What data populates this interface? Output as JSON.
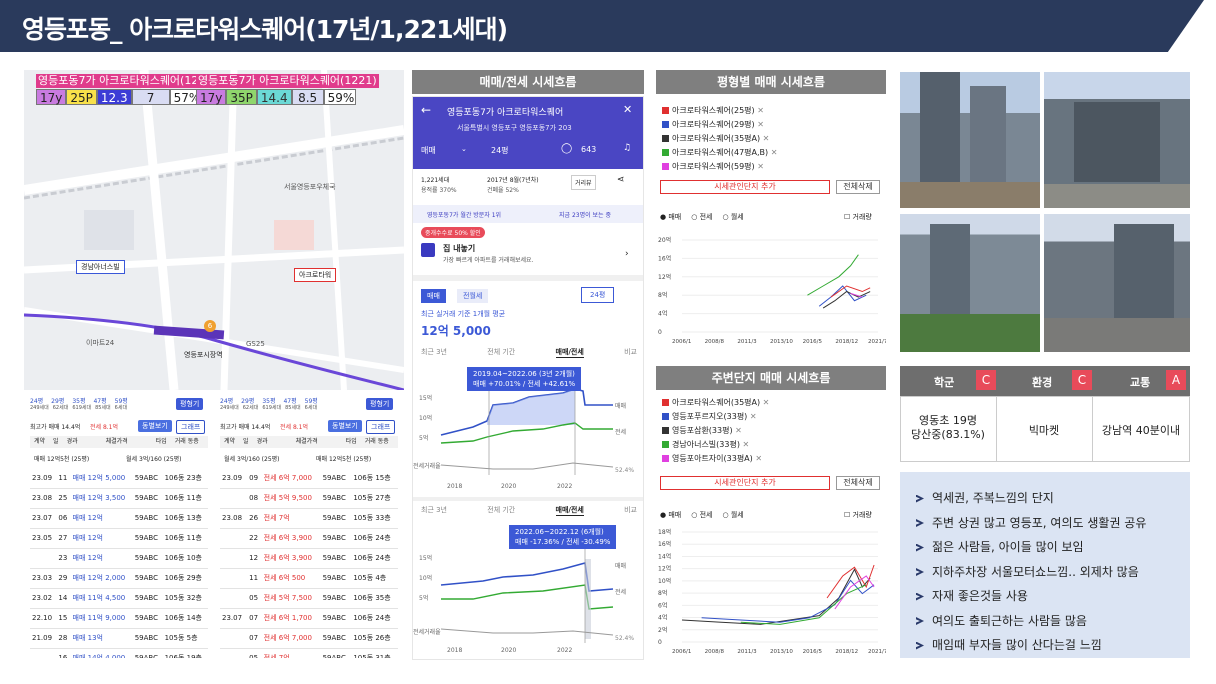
{
  "title": "영등포동_ 아크로타워스퀘어(17년/1,221세대)",
  "map": {
    "labels": [
      "영등포동7가 아크로타워스퀘어(1221)",
      "영등포동7가 아크로타워스퀘어(1221)"
    ],
    "left_cells": [
      "17y",
      "25P",
      "12.3",
      "7",
      "57%"
    ],
    "right_cells": [
      "17y",
      "35P",
      "14.4",
      "8.5",
      "59%"
    ],
    "tags": [
      "경남아너스빌",
      "아크로타워",
      "영등포시장역",
      "이마트24",
      "GS25",
      "서울영등포우체국",
      "영등포동7가"
    ]
  },
  "table_left": {
    "sizes": [
      "24평",
      "29평",
      "35평",
      "47평",
      "59평"
    ],
    "households": [
      "249세대",
      "62세대",
      "619세대",
      "85세대",
      "6세대"
    ],
    "filter_btn": "평형기",
    "max_price": "최고가 매매 14.4억",
    "jeonse_rate": "전세 8.1억",
    "chip1": "동별보기",
    "chip2": "그래프",
    "headers": [
      "계약",
      "일",
      "경과",
      "체결가격",
      "타입",
      "거래 동층"
    ],
    "summary": [
      "매매 12억5천 (25평)",
      "월세 3억/160 (25평)"
    ],
    "rows": [
      [
        "23.09",
        "11",
        "매매 12억 5,000",
        "59ABC",
        "106동 23층"
      ],
      [
        "23.08",
        "25",
        "매매 12억 3,500",
        "59ABC",
        "106동 11층"
      ],
      [
        "23.07",
        "06",
        "매매 12억",
        "59ABC",
        "106동 13층"
      ],
      [
        "23.05",
        "27",
        "매매 12억",
        "59ABC",
        "106동 11층"
      ],
      [
        "",
        "23",
        "매매 12억",
        "59ABC",
        "106동 10층"
      ],
      [
        "23.03",
        "29",
        "매매 12억 2,000",
        "59ABC",
        "106동 29층"
      ],
      [
        "23.02",
        "14",
        "매매 11억 4,500",
        "59ABC",
        "105동 32층"
      ],
      [
        "22.10",
        "15",
        "매매 11억 9,000",
        "59ABC",
        "106동 14층"
      ],
      [
        "21.09",
        "28",
        "매매 13억",
        "59ABC",
        "105동 5층"
      ],
      [
        "",
        "16",
        "매매 14억 4,000",
        "59ABC",
        "106동 19층"
      ]
    ]
  },
  "table_right": {
    "sizes": [
      "24평",
      "29평",
      "35평",
      "47평",
      "59평"
    ],
    "households": [
      "249세대",
      "62세대",
      "619세대",
      "85세대",
      "6세대"
    ],
    "filter_btn": "평형기",
    "max_price": "최고가 매매 14.4억",
    "jeonse_rate": "전세 8.1억",
    "chip1": "동별보기",
    "chip2": "그래프",
    "headers": [
      "계약",
      "일",
      "경과",
      "체결가격",
      "타입",
      "거래 동층"
    ],
    "summary": [
      "월세 3억/160 (25평)",
      "매매 12억5천 (25평)"
    ],
    "rows": [
      [
        "23.09",
        "09",
        "전세 6억 7,000",
        "59ABC",
        "106동 15층"
      ],
      [
        "",
        "08",
        "전세 5억 9,500",
        "59ABC",
        "105동 27층"
      ],
      [
        "23.08",
        "26",
        "전세 7억",
        "59ABC",
        "105동 33층"
      ],
      [
        "",
        "22",
        "전세 6억 3,900",
        "59ABC",
        "106동 24층"
      ],
      [
        "",
        "12",
        "전세 6억 3,900",
        "59ABC",
        "106동 24층"
      ],
      [
        "",
        "11",
        "전세 6억 500",
        "59ABC",
        "105동 4층"
      ],
      [
        "",
        "05",
        "전세 5억 7,500",
        "59ABC",
        "106동 35층"
      ],
      [
        "23.07",
        "07",
        "전세 6억 1,700",
        "59ABC",
        "106동 24층"
      ],
      [
        "",
        "07",
        "전세 6억 7,000",
        "59ABC",
        "105동 26층"
      ],
      [
        "",
        "05",
        "전세 7억",
        "59ABC",
        "105동 31층"
      ]
    ]
  },
  "center": {
    "header": "매매/전세 시세흐름",
    "app_title": "영등포동7가 아크로타워스퀘어",
    "address": "서울특별시 영등포구 영등포동7가 203",
    "tab_trade": "매매",
    "tab_size": "24평",
    "comment_count": "643",
    "info1": "1,221세대",
    "info2": "용적률 370%",
    "info3": "2017년 8월(7년차)",
    "info4": "건폐율 52%",
    "view_btn": "거리뷰",
    "visit_text": "영등포동7가 월간 방문자 1위",
    "visit_now": "지금 23명이 보는 중",
    "promo": "중개수수료 50% 할인",
    "sell_title": "집 내놓기",
    "sell_sub": "가장 빠르게 아파트를 거래해보세요.",
    "pill1": "매매",
    "pill2": "전월세",
    "size_select": "24평",
    "avg_label": "최근 실거래 기준 1개월 평균",
    "avg_price": "12억 5,000",
    "tabs": [
      "최근 3년",
      "전체 기간",
      "매매/전세",
      "비교"
    ],
    "tooltip1_a": "2019.04~2022.06 (3년 2개월)",
    "tooltip1_b": "매매 +70.01% / 전세 +42.61%",
    "tooltip2_a": "2022.06~2022.12 (6개월)",
    "tooltip2_b": "매매 -17.36% / 전세 -30.49%",
    "y_labels": [
      "15억",
      "10억",
      "5억"
    ],
    "x_labels": [
      "2018",
      "2020",
      "2022"
    ],
    "line_labels": [
      "매매",
      "전세"
    ],
    "vol_label": "전세거래율",
    "vol_value": "52.4%"
  },
  "price_by_size": {
    "header": "평형별 매매 시세흐름",
    "legend": [
      {
        "name": "아크로타워스퀘어(25평)",
        "color": "#e03030"
      },
      {
        "name": "아크로타워스퀘어(29평)",
        "color": "#3151c7"
      },
      {
        "name": "아크로타워스퀘어(35평A)",
        "color": "#333333"
      },
      {
        "name": "아크로타워스퀘어(47평A,B)",
        "color": "#33aa33"
      },
      {
        "name": "아크로타워스퀘어(59평)",
        "color": "#e040e0"
      }
    ],
    "add_btn": "시세관인단지 추가",
    "del_btn": "전체삭제",
    "radios": [
      "매매",
      "전세",
      "월세"
    ],
    "trade_check": "거래량",
    "y_labels": [
      "20억",
      "16억",
      "12억",
      "8억",
      "4억",
      "0"
    ],
    "x_labels": [
      "2006/1",
      "2008/8",
      "2011/3",
      "2013/10",
      "2016/5",
      "2018/12",
      "2021/7"
    ]
  },
  "nearby": {
    "header": "주변단지 매매 시세흐름",
    "legend": [
      {
        "name": "아크로타워스퀘어(35평A)",
        "color": "#e03030"
      },
      {
        "name": "영등포푸르지오(33평)",
        "color": "#3151c7"
      },
      {
        "name": "영등포삼환(33평)",
        "color": "#333333"
      },
      {
        "name": "경남아너스빌(33평)",
        "color": "#33aa33"
      },
      {
        "name": "영등포아트자이(33평A)",
        "color": "#e040e0"
      }
    ],
    "add_btn": "시세관인단지 추가",
    "del_btn": "전체삭제",
    "radios": [
      "매매",
      "전세",
      "월세"
    ],
    "trade_check": "거래량",
    "y_labels": [
      "18억",
      "16억",
      "14억",
      "12억",
      "10억",
      "8억",
      "6억",
      "4억",
      "2억",
      "0"
    ],
    "x_labels": [
      "2006/1",
      "2008/8",
      "2011/3",
      "2013/10",
      "2016/5",
      "2018/12",
      "2021/7"
    ]
  },
  "ratings": {
    "cols": [
      {
        "label": "학군",
        "grade": "C",
        "value": "영동초 19명\n당산중(83.1%)"
      },
      {
        "label": "환경",
        "grade": "C",
        "value": "빅마켓"
      },
      {
        "label": "교통",
        "grade": "A",
        "value": "강남역 40분이내"
      }
    ]
  },
  "bullets": [
    "역세권, 주복느낌의 단지",
    "주변 상권 많고 영등포, 여의도 생활권 공유",
    "젊은 사람들, 아이들 많이 보임",
    "지하주차장 서울모터쇼느낌.. 외제차 많음",
    "자재 좋은것들 사용",
    "여의도 출퇴근하는 사람들 많음",
    "매임때 부자들 많이 산다는걸 느낌"
  ],
  "colors": {
    "header_bg": "#2a3a5c",
    "accent": "#4a46c3",
    "grade_bg": "#e84b5a",
    "bullet_bg": "#dbe4f3"
  }
}
